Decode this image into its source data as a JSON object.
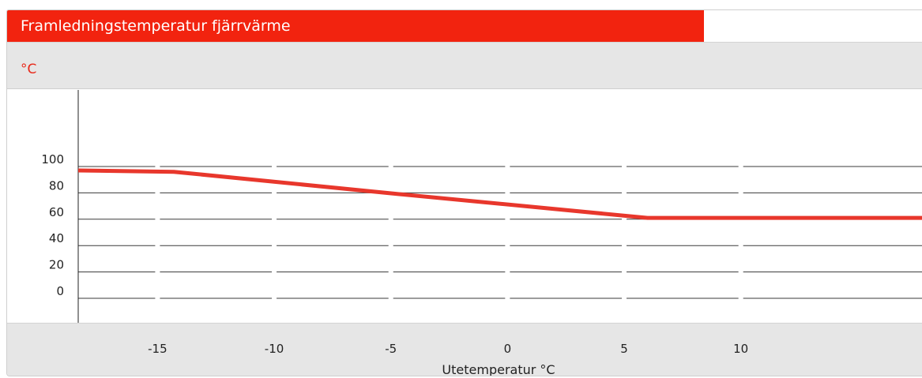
{
  "header": {
    "title": "Framledningstemperatur fjärrvärme"
  },
  "chart_data": {
    "type": "line",
    "title": "Framledningstemperatur fjärrvärme",
    "ylabel": "°C",
    "xlabel": "Utetemperatur °C",
    "xlim": [
      -18.4,
      17.8
    ],
    "ylim": [
      0,
      100
    ],
    "x_ticks": [
      -15,
      -10,
      -5,
      0,
      5,
      10
    ],
    "y_ticks": [
      0,
      20,
      40,
      60,
      80,
      100
    ],
    "grid": true,
    "series": [
      {
        "x": [
          -18.4,
          -14.3,
          -5.2,
          6.0,
          17.8
        ],
        "values": [
          97,
          96,
          80,
          61,
          61
        ],
        "color": "#e8372c"
      }
    ]
  }
}
